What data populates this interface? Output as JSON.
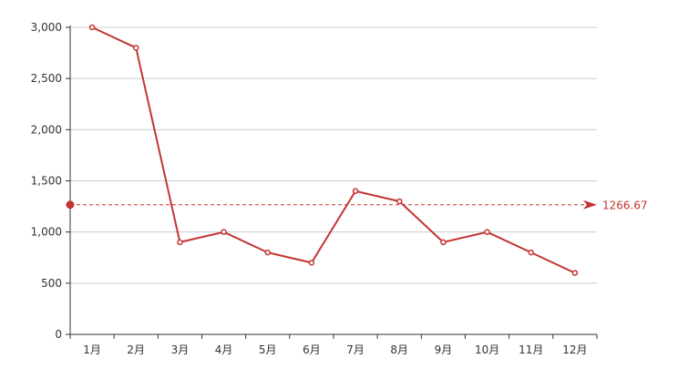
{
  "chart_data": {
    "type": "line",
    "title": "",
    "xlabel": "",
    "ylabel": "",
    "categories": [
      "1月",
      "2月",
      "3月",
      "4月",
      "5月",
      "6月",
      "7月",
      "8月",
      "9月",
      "10月",
      "11月",
      "12月"
    ],
    "series": [
      {
        "values": [
          3000,
          2800,
          900,
          1000,
          800,
          700,
          1400,
          1300,
          900,
          1000,
          800,
          600
        ]
      }
    ],
    "ylim": [
      0,
      3000
    ],
    "yticks": [
      0,
      500,
      1000,
      1500,
      2000,
      2500,
      3000
    ],
    "ytick_labels": [
      "0",
      "500",
      "1,000",
      "1,500",
      "2,000",
      "2,500",
      "3,000"
    ],
    "grid": true,
    "average_line": {
      "value": 1266.67,
      "label": "1266.67"
    },
    "colors": {
      "series": "#c23531",
      "grid": "#cccccc",
      "axis": "#333333",
      "tick_text": "#333333"
    }
  }
}
